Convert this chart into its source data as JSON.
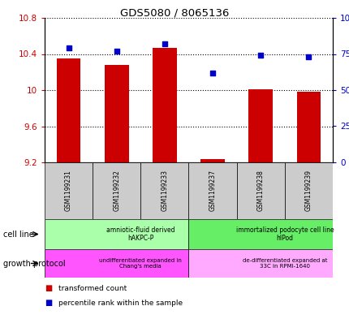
{
  "title": "GDS5080 / 8065136",
  "samples": [
    "GSM1199231",
    "GSM1199232",
    "GSM1199233",
    "GSM1199237",
    "GSM1199238",
    "GSM1199239"
  ],
  "bar_values": [
    10.35,
    10.28,
    10.47,
    9.24,
    10.01,
    9.98
  ],
  "scatter_values": [
    79,
    77,
    82,
    62,
    74,
    73
  ],
  "ylim_left": [
    9.2,
    10.8
  ],
  "ylim_right": [
    0,
    100
  ],
  "yticks_left": [
    9.2,
    9.6,
    10.0,
    10.4,
    10.8
  ],
  "yticks_right": [
    0,
    25,
    50,
    75,
    100
  ],
  "ytick_labels_left": [
    "9.2",
    "9.6",
    "10",
    "10.4",
    "10.8"
  ],
  "ytick_labels_right": [
    "0",
    "25",
    "50",
    "75",
    "100%"
  ],
  "bar_color": "#cc0000",
  "scatter_color": "#0000cc",
  "bar_bottom": 9.2,
  "cell_line_groups": [
    {
      "label": "amniotic-fluid derived\nhAKPC-P",
      "start": 0,
      "end": 3,
      "color": "#aaffaa"
    },
    {
      "label": "immortalized podocyte cell line\nhIPod",
      "start": 3,
      "end": 6,
      "color": "#66ee66"
    }
  ],
  "growth_protocol_groups": [
    {
      "label": "undifferentiated expanded in\nChang's media",
      "start": 0,
      "end": 3,
      "color": "#ff55ff"
    },
    {
      "label": "de-differentiated expanded at\n33C in RPMI-1640",
      "start": 3,
      "end": 6,
      "color": "#ffaaff"
    }
  ],
  "cell_line_label": "cell line",
  "growth_protocol_label": "growth protocol",
  "legend_bar_label": "transformed count",
  "legend_scatter_label": "percentile rank within the sample",
  "left_axis_color": "#cc0000",
  "right_axis_color": "#0000cc",
  "grid_color": "#000000",
  "sample_box_color": "#cccccc"
}
